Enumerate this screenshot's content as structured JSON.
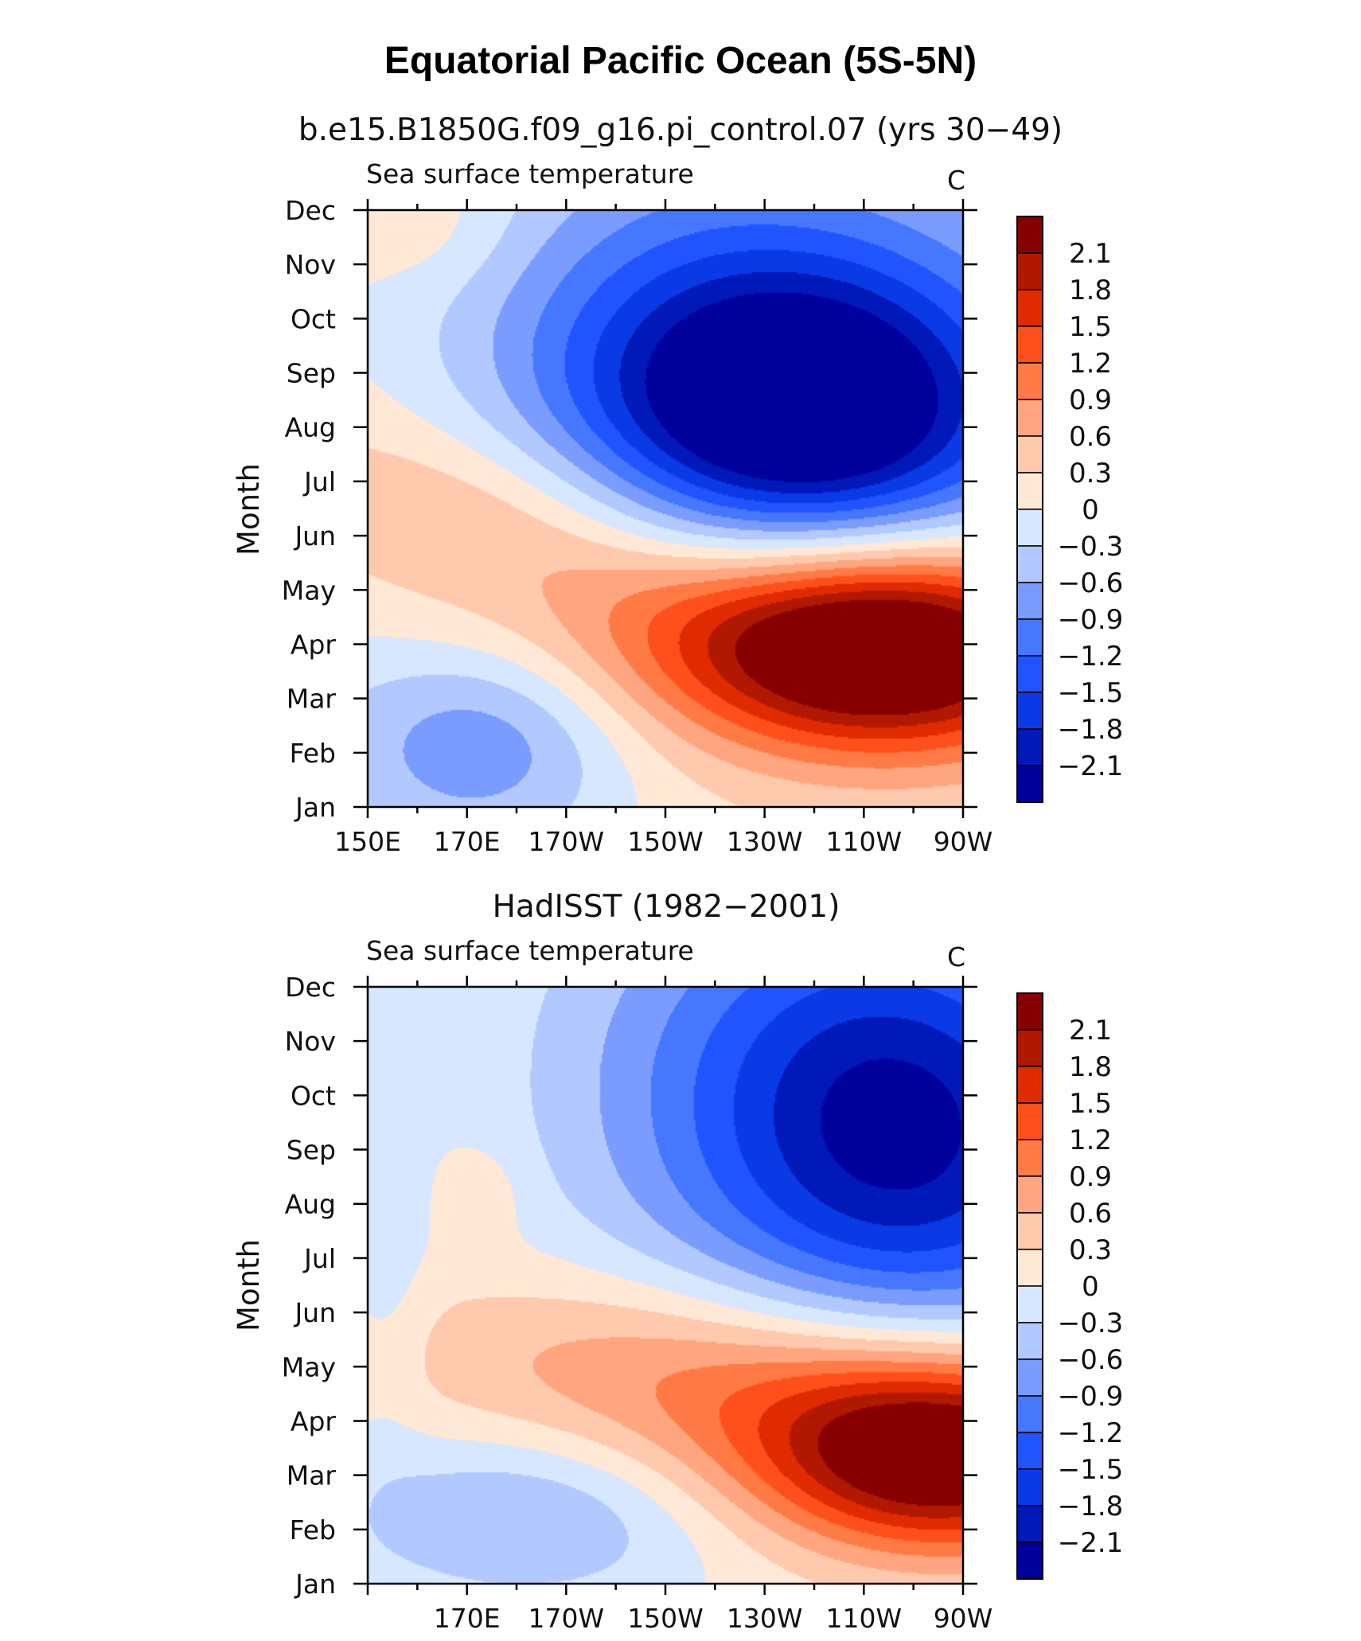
{
  "figure": {
    "title": "Equatorial Pacific Ocean (5S-5N)"
  },
  "chart_data": [
    {
      "type": "heatmap",
      "title": "b.e15.B1850G.f09_g16.pi_control.07 (yrs 30−49)",
      "subtitle": "Sea surface temperature",
      "units": "C",
      "xlabel": "",
      "ylabel": "Month",
      "x_ticks": [
        "150E",
        "170E",
        "170W",
        "150W",
        "130W",
        "110W",
        "90W"
      ],
      "y_ticks": [
        "Jan",
        "Feb",
        "Mar",
        "Apr",
        "May",
        "Jun",
        "Jul",
        "Aug",
        "Sep",
        "Oct",
        "Nov",
        "Dec"
      ],
      "xlim": [
        150,
        270
      ],
      "colorbar_labels": [
        "2.1",
        "1.8",
        "1.5",
        "1.2",
        "0.9",
        "0.6",
        "0.3",
        "0",
        "−0.3",
        "−0.6",
        "−0.9",
        "−1.2",
        "−1.5",
        "−1.8",
        "−2.1"
      ],
      "levels": [
        -2.1,
        -1.8,
        -1.5,
        -1.2,
        -0.9,
        -0.6,
        -0.3,
        0,
        0.3,
        0.6,
        0.9,
        1.2,
        1.5,
        1.8,
        2.1
      ],
      "features": [
        {
          "kind": "warm_max",
          "lon": 255,
          "month": 3.9,
          "value": 2.2
        },
        {
          "kind": "cold_min",
          "lon": 238,
          "month": 8.0,
          "value": -2.2
        },
        {
          "kind": "cold_minor",
          "lon": 175,
          "month": 2.2,
          "value": -0.6
        }
      ]
    },
    {
      "type": "heatmap",
      "title": "HadISST (1982−2001)",
      "subtitle": "Sea surface temperature",
      "units": "C",
      "xlabel": "",
      "ylabel": "Month",
      "x_ticks": [
        "170E",
        "170W",
        "150W",
        "130W",
        "110W",
        "90W"
      ],
      "y_ticks": [
        "Jan",
        "Feb",
        "Mar",
        "Apr",
        "May",
        "Jun",
        "Jul",
        "Aug",
        "Sep",
        "Oct",
        "Nov",
        "Dec"
      ],
      "xlim": [
        150,
        270
      ],
      "colorbar_labels": [
        "2.1",
        "1.8",
        "1.5",
        "1.2",
        "0.9",
        "0.6",
        "0.3",
        "0",
        "−0.3",
        "−0.6",
        "−0.9",
        "−1.2",
        "−1.5",
        "−1.8",
        "−2.1"
      ],
      "levels": [
        -2.1,
        -1.8,
        -1.5,
        -1.2,
        -0.9,
        -0.6,
        -0.3,
        0,
        0.3,
        0.6,
        0.9,
        1.2,
        1.5,
        1.8,
        2.1
      ],
      "features": [
        {
          "kind": "warm_max",
          "lon": 264,
          "month": 3.4,
          "value": 2.2
        },
        {
          "kind": "cold_min",
          "lon": 262,
          "month": 8.5,
          "value": -1.6
        },
        {
          "kind": "cold_minor",
          "lon": 180,
          "month": 2.2,
          "value": -0.6
        }
      ]
    }
  ],
  "colors": [
    "#00009c",
    "#0019b8",
    "#0a3ae6",
    "#1f54ff",
    "#4577ff",
    "#7a9cff",
    "#b2c9ff",
    "#d6e7ff",
    "#ffe8d6",
    "#ffc9ad",
    "#ffa57f",
    "#ff7a45",
    "#ff4f1a",
    "#e02a00",
    "#b01800",
    "#870000"
  ]
}
